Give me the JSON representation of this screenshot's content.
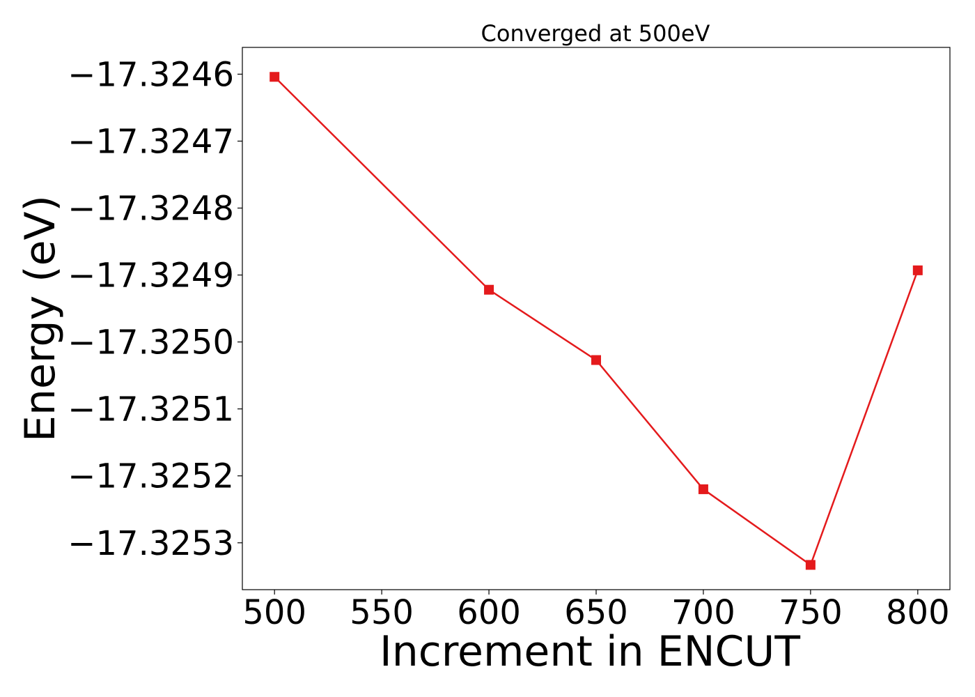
{
  "chart_data": {
    "type": "line",
    "title": "Converged at 500eV",
    "xlabel": "Increment in ENCUT",
    "ylabel": "Energy (eV)",
    "xlim": [
      485,
      815
    ],
    "ylim": [
      -17.32537,
      -17.32456
    ],
    "x_ticks": [
      500,
      550,
      600,
      650,
      700,
      750,
      800
    ],
    "x_tick_labels": [
      "500",
      "550",
      "600",
      "650",
      "700",
      "750",
      "800"
    ],
    "y_ticks": [
      -17.3246,
      -17.3247,
      -17.3248,
      -17.3249,
      -17.325,
      -17.3251,
      -17.3252,
      -17.3253
    ],
    "y_tick_labels": [
      "−17.3246",
      "−17.3247",
      "−17.3248",
      "−17.3249",
      "−17.3250",
      "−17.3251",
      "−17.3252",
      "−17.3253"
    ],
    "grid": false,
    "series": [
      {
        "x": [
          500,
          600,
          650,
          700,
          750,
          800
        ],
        "y": [
          -17.324604,
          -17.324922,
          -17.325027,
          -17.32522,
          -17.325333,
          -17.324893
        ],
        "color": "#e41a1c",
        "marker": "square"
      }
    ]
  }
}
